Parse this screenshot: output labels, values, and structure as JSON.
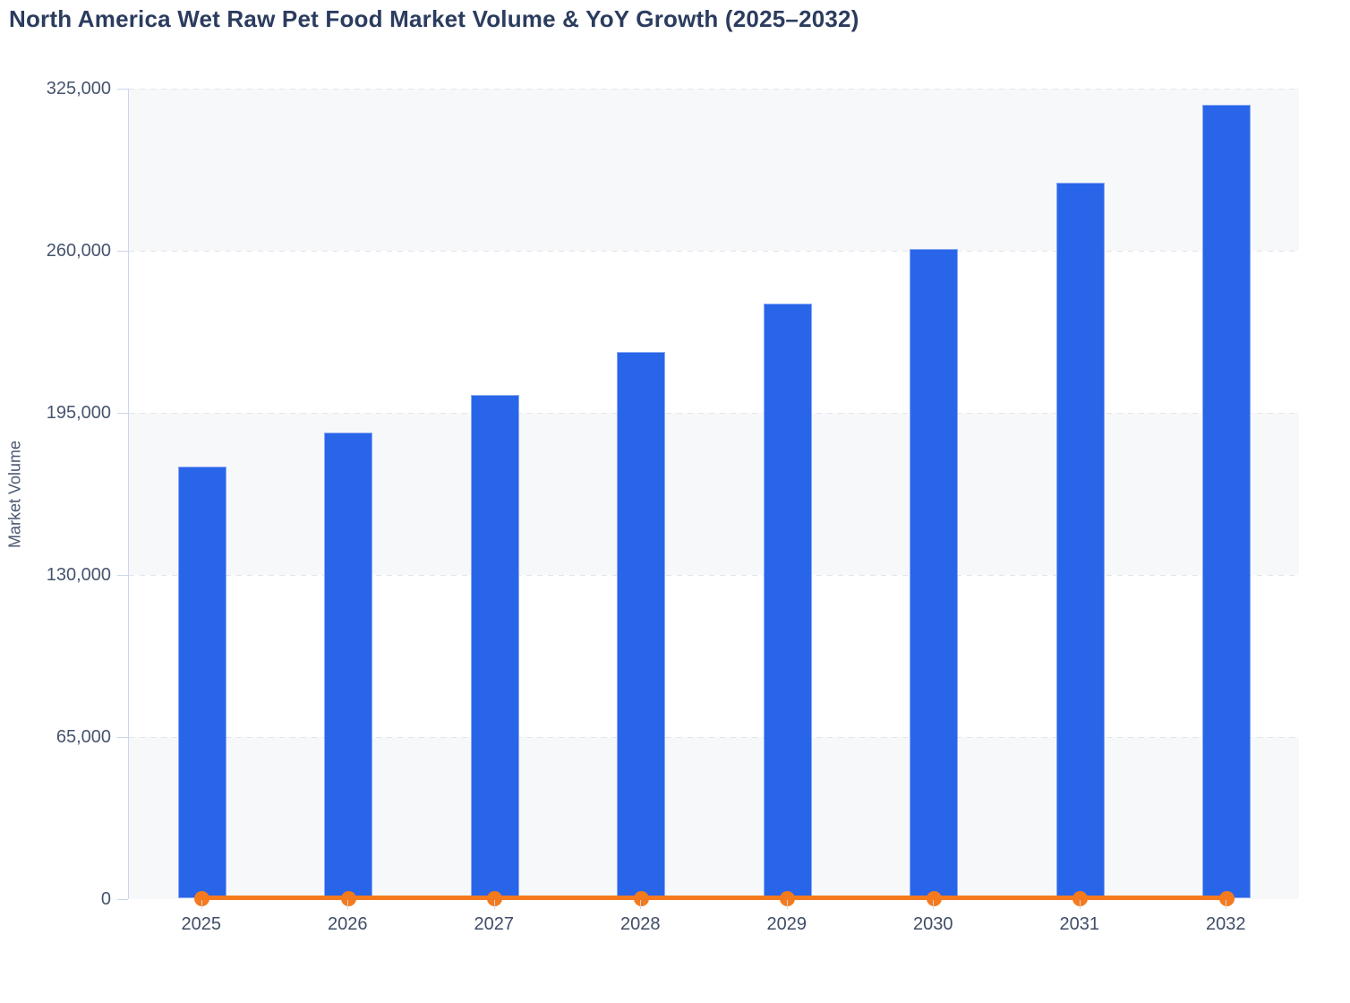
{
  "title": "North America Wet Raw Pet Food Market Volume & YoY Growth (2025–2032)",
  "colors": {
    "bar": "#2965e9",
    "line": "#f57a1d",
    "band_gray": "#f7f8fa",
    "gridline": "#e2e5ea",
    "axis": "#ccd6eb",
    "title_text": "#2b3c5e",
    "tick_text": "#46546e"
  },
  "chart_data": {
    "type": "bar",
    "combo": "bar series with flat line-and-marker series along zero baseline",
    "title": "North America Wet Raw Pet Food Market Volume & YoY Growth (2025–2032)",
    "xlabel": "",
    "ylabel": "Market Volume",
    "categories": [
      "2025",
      "2026",
      "2027",
      "2028",
      "2029",
      "2030",
      "2031",
      "2032"
    ],
    "series": [
      {
        "name": "Market Volume",
        "type": "bar",
        "color": "#2965e9",
        "values": [
          173000,
          186800,
          202000,
          219000,
          238300,
          260400,
          286800,
          318300
        ],
        "values_are_estimates_read_from_axis": true
      },
      {
        "name": "YoY Growth",
        "type": "line",
        "color": "#f57a1d",
        "values": [
          0,
          8.0,
          8.1,
          8.4,
          8.8,
          9.3,
          10.2,
          11.0
        ],
        "note": "plotted on the same 0–325,000 axis so the line renders flat at ~0; percentages are estimates derived from bar heights, no data labels visible"
      }
    ],
    "ylim": [
      0,
      325000
    ],
    "yticks": [
      0,
      65000,
      130000,
      195000,
      260000,
      325000
    ],
    "ytick_labels": [
      "0",
      "65,000",
      "130,000",
      "195,000",
      "260,000",
      "325,000"
    ],
    "grid": "dashed horizontal gridlines, alternating gray/white horizontal bands",
    "legend": "none"
  }
}
